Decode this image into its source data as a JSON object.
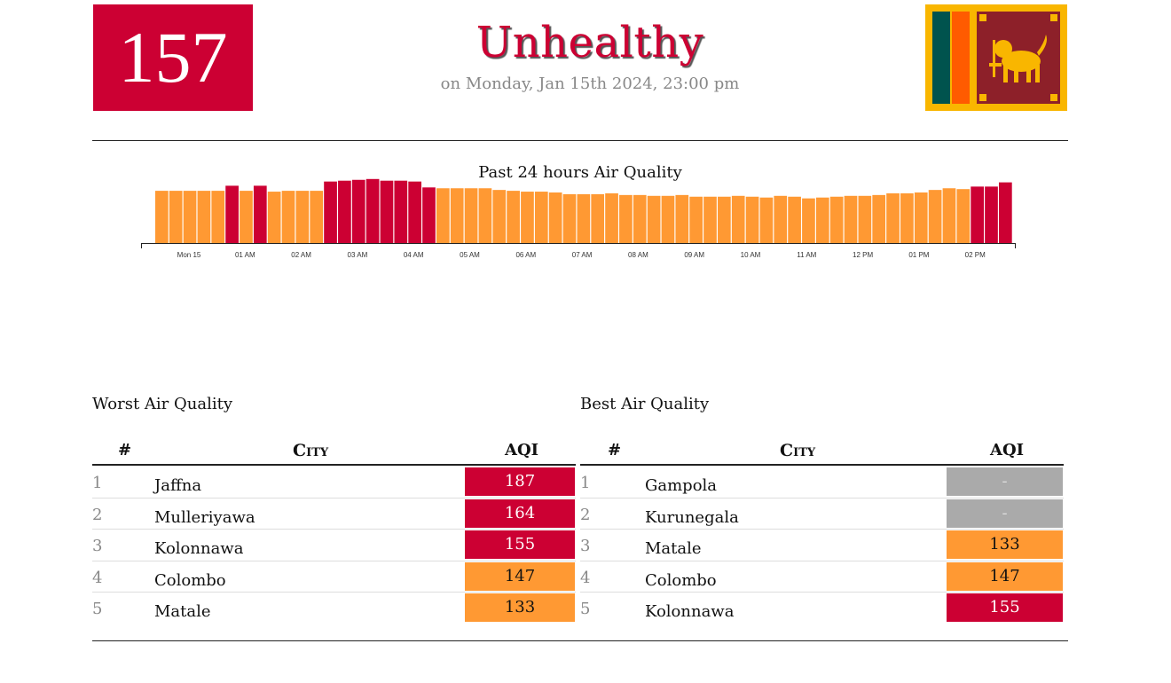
{
  "header": {
    "aqi": "157",
    "aqi_color": "#cc0033",
    "status": "Unhealthy",
    "timestamp": "on Monday, Jan 15th 2024, 23:00 pm",
    "flag": "sri-lanka-flag"
  },
  "chart_data": {
    "type": "bar",
    "title": "Past 24 hours Air Quality",
    "tick_labels": [
      "Mon 15",
      "01 AM",
      "02 AM",
      "03 AM",
      "04 AM",
      "05 AM",
      "06 AM",
      "07 AM",
      "08 AM",
      "09 AM",
      "10 AM",
      "11 AM",
      "12 PM",
      "01 PM",
      "02 PM"
    ],
    "values": [
      147,
      147,
      147,
      147,
      147,
      153,
      147,
      153,
      146,
      147,
      147,
      147,
      158,
      159,
      160,
      161,
      159,
      159,
      158,
      151,
      150,
      150,
      150,
      150,
      148,
      147,
      146,
      146,
      145,
      143,
      143,
      143,
      144,
      142,
      142,
      141,
      141,
      142,
      140,
      140,
      140,
      141,
      140,
      139,
      141,
      140,
      138,
      139,
      140,
      141,
      141,
      142,
      144,
      144,
      145,
      148,
      150,
      149,
      152,
      152,
      157
    ],
    "colors": {
      "moderate": "#ff9933",
      "unhealthy": "#cc0033"
    },
    "unhealthy_threshold": 150
  },
  "worst": {
    "title": "Worst Air Quality",
    "col_rank": "#",
    "col_city": "City",
    "col_aqi": "AQI",
    "rows": [
      {
        "rank": "1",
        "city": "Jaffna",
        "aqi": "187",
        "color": "#cc0033",
        "text": "#ffffff"
      },
      {
        "rank": "2",
        "city": "Mulleriyawa",
        "aqi": "164",
        "color": "#cc0033",
        "text": "#ffffff"
      },
      {
        "rank": "3",
        "city": "Kolonnawa",
        "aqi": "155",
        "color": "#cc0033",
        "text": "#ffffff"
      },
      {
        "rank": "4",
        "city": "Colombo",
        "aqi": "147",
        "color": "#ff9933",
        "text": "#111111"
      },
      {
        "rank": "5",
        "city": "Matale",
        "aqi": "133",
        "color": "#ff9933",
        "text": "#111111"
      }
    ]
  },
  "best": {
    "title": "Best Air Quality",
    "col_rank": "#",
    "col_city": "City",
    "col_aqi": "AQI",
    "rows": [
      {
        "rank": "1",
        "city": "Gampola",
        "aqi": "-",
        "color": "#aaaaaa",
        "text": "#dddddd"
      },
      {
        "rank": "2",
        "city": "Kurunegala",
        "aqi": "-",
        "color": "#aaaaaa",
        "text": "#dddddd"
      },
      {
        "rank": "3",
        "city": "Matale",
        "aqi": "133",
        "color": "#ff9933",
        "text": "#111111"
      },
      {
        "rank": "4",
        "city": "Colombo",
        "aqi": "147",
        "color": "#ff9933",
        "text": "#111111"
      },
      {
        "rank": "5",
        "city": "Kolonnawa",
        "aqi": "155",
        "color": "#cc0033",
        "text": "#ffffff"
      }
    ]
  }
}
